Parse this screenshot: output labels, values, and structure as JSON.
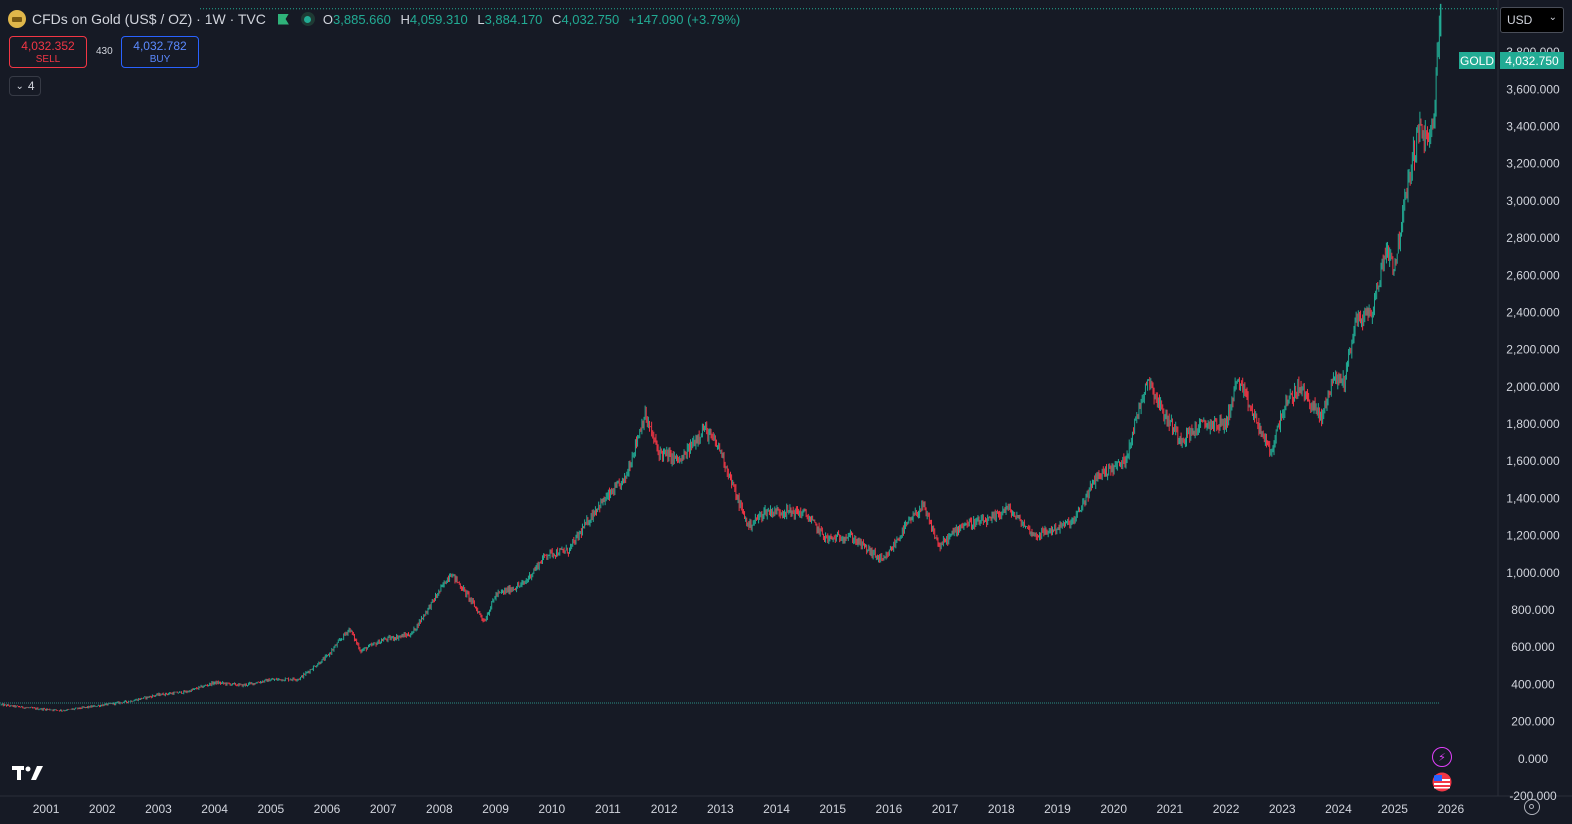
{
  "header": {
    "title": "CFDs on Gold (US$ / OZ) · 1W · TVC",
    "open_label": "O",
    "open": "3,885.660",
    "high_label": "H",
    "high": "4,059.310",
    "low_label": "L",
    "low": "3,884.170",
    "close_label": "C",
    "close": "4,032.750",
    "change": "+147.090 (+3.79%)"
  },
  "trade": {
    "sell_price": "4,032.352",
    "sell_label": "SELL",
    "buy_price": "4,032.782",
    "buy_label": "BUY",
    "spread": "430"
  },
  "collapse_button": {
    "label": "4"
  },
  "currency_select": {
    "value": "USD"
  },
  "price_tag": {
    "symbol": "GOLD",
    "price": "4,032.750"
  },
  "colors": {
    "up": "#22ab94",
    "down": "#f23645",
    "background": "#161a25",
    "text": "#d1d4dc",
    "gold_icon": "#e0b74a"
  },
  "icons": [
    "gold-symbol-icon",
    "flag-icon",
    "market-status-icon",
    "chevron-down-icon",
    "tradingview-logo-icon",
    "flash-icon",
    "us-flag-icon",
    "settings-icon"
  ],
  "chart_data": {
    "type": "candlestick",
    "interval": "1W",
    "yaxis_ticks": [
      "-200.000",
      "0.000",
      "200.000",
      "400.000",
      "600.000",
      "800.000",
      "1,000.000",
      "1,200.000",
      "1,400.000",
      "1,600.000",
      "1,800.000",
      "2,000.000",
      "2,200.000",
      "2,400.000",
      "2,600.000",
      "2,800.000",
      "3,000.000",
      "3,200.000",
      "3,400.000",
      "3,600.000",
      "3,800.000"
    ],
    "ytick_values": [
      -200,
      0,
      200,
      400,
      600,
      800,
      1000,
      1200,
      1400,
      1600,
      1800,
      2000,
      2200,
      2400,
      2600,
      2800,
      3000,
      3200,
      3400,
      3600,
      3800
    ],
    "ylim": [
      -200,
      4080
    ],
    "xaxis_ticks": [
      "2001",
      "2002",
      "2003",
      "2004",
      "2005",
      "2006",
      "2007",
      "2008",
      "2009",
      "2010",
      "2011",
      "2012",
      "2013",
      "2014",
      "2015",
      "2016",
      "2017",
      "2018",
      "2019",
      "2020",
      "2021",
      "2022",
      "2023",
      "2024",
      "2025",
      "2026"
    ],
    "xtick_values": [
      2001,
      2002,
      2003,
      2004,
      2005,
      2006,
      2007,
      2008,
      2009,
      2010,
      2011,
      2012,
      2013,
      2014,
      2015,
      2016,
      2017,
      2018,
      2019,
      2020,
      2021,
      2022,
      2023,
      2024,
      2025,
      2026
    ],
    "xlim": [
      2000.18,
      2026.84
    ],
    "last_close": 4032.75,
    "baseline_level": 300,
    "price_path": [
      [
        2000.2,
        290
      ],
      [
        2000.8,
        270
      ],
      [
        2001.3,
        260
      ],
      [
        2001.8,
        280
      ],
      [
        2002.5,
        310
      ],
      [
        2003.0,
        345
      ],
      [
        2003.5,
        360
      ],
      [
        2004.0,
        410
      ],
      [
        2004.5,
        395
      ],
      [
        2005.0,
        425
      ],
      [
        2005.5,
        430
      ],
      [
        2006.0,
        550
      ],
      [
        2006.4,
        700
      ],
      [
        2006.6,
        580
      ],
      [
        2007.0,
        640
      ],
      [
        2007.5,
        670
      ],
      [
        2008.0,
        900
      ],
      [
        2008.2,
        1000
      ],
      [
        2008.5,
        880
      ],
      [
        2008.8,
        740
      ],
      [
        2009.0,
        880
      ],
      [
        2009.5,
        940
      ],
      [
        2009.9,
        1100
      ],
      [
        2010.3,
        1120
      ],
      [
        2010.8,
        1350
      ],
      [
        2011.3,
        1500
      ],
      [
        2011.65,
        1850
      ],
      [
        2011.9,
        1650
      ],
      [
        2012.3,
        1600
      ],
      [
        2012.7,
        1780
      ],
      [
        2013.0,
        1660
      ],
      [
        2013.3,
        1400
      ],
      [
        2013.5,
        1250
      ],
      [
        2013.8,
        1330
      ],
      [
        2014.2,
        1330
      ],
      [
        2014.5,
        1320
      ],
      [
        2014.9,
        1180
      ],
      [
        2015.3,
        1200
      ],
      [
        2015.9,
        1060
      ],
      [
        2016.3,
        1250
      ],
      [
        2016.6,
        1360
      ],
      [
        2016.9,
        1140
      ],
      [
        2017.3,
        1260
      ],
      [
        2017.8,
        1280
      ],
      [
        2018.1,
        1350
      ],
      [
        2018.6,
        1200
      ],
      [
        2018.9,
        1230
      ],
      [
        2019.3,
        1280
      ],
      [
        2019.7,
        1520
      ],
      [
        2020.2,
        1600
      ],
      [
        2020.6,
        2050
      ],
      [
        2020.9,
        1850
      ],
      [
        2021.2,
        1720
      ],
      [
        2021.6,
        1800
      ],
      [
        2022.0,
        1800
      ],
      [
        2022.2,
        2040
      ],
      [
        2022.8,
        1640
      ],
      [
        2023.0,
        1870
      ],
      [
        2023.3,
        2000
      ],
      [
        2023.7,
        1830
      ],
      [
        2023.9,
        2050
      ],
      [
        2024.1,
        2030
      ],
      [
        2024.3,
        2350
      ],
      [
        2024.6,
        2400
      ],
      [
        2024.85,
        2750
      ],
      [
        2025.0,
        2650
      ],
      [
        2025.3,
        3200
      ],
      [
        2025.45,
        3400
      ],
      [
        2025.6,
        3300
      ],
      [
        2025.7,
        3450
      ],
      [
        2025.75,
        3700
      ],
      [
        2025.8,
        4032.75
      ]
    ]
  }
}
